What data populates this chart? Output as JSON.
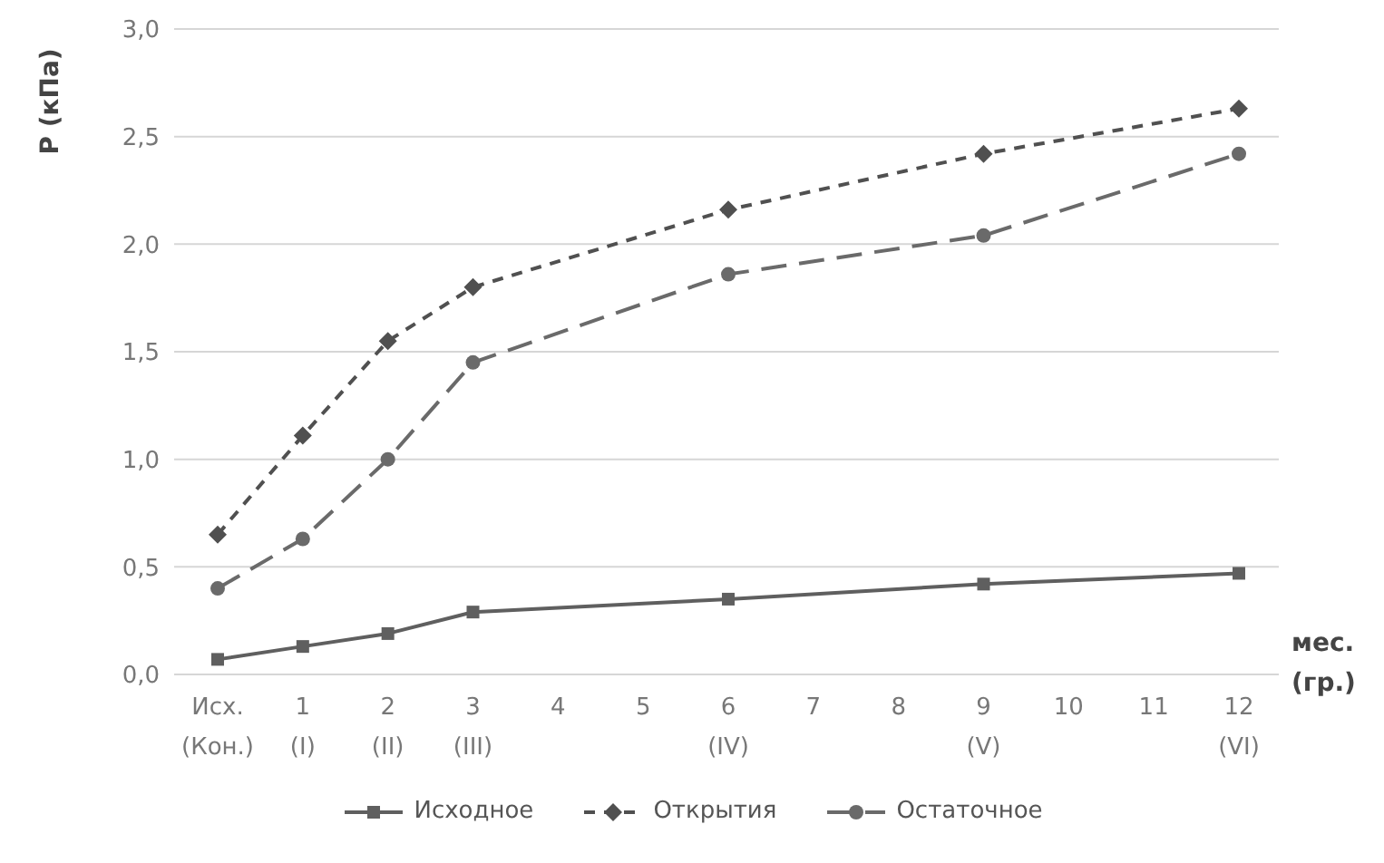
{
  "chart_data": {
    "type": "line",
    "ylabel": "P (кПа)",
    "xlabel": "мес. (гр.)",
    "categories": [
      "Исх. (Кон.)",
      "1 (I)",
      "2 (II)",
      "3 (III)",
      "4",
      "5",
      "6 (IV)",
      "7",
      "8",
      "9 (V)",
      "10",
      "11",
      "12 (VI)"
    ],
    "series": [
      {
        "name": "Исходное",
        "color": "#5f5f5f",
        "marker": "square",
        "line_style": "solid",
        "values": [
          0.07,
          0.13,
          0.19,
          0.29,
          null,
          null,
          0.35,
          null,
          null,
          0.42,
          null,
          null,
          0.47
        ]
      },
      {
        "name": "Открытия",
        "color": "#505050",
        "marker": "diamond",
        "line_style": "dotted",
        "values": [
          0.65,
          1.11,
          1.55,
          1.8,
          null,
          null,
          2.16,
          null,
          null,
          2.42,
          null,
          null,
          2.63
        ]
      },
      {
        "name": "Остаточное",
        "color": "#6a6a6a",
        "marker": "circle",
        "line_style": "dashed",
        "values": [
          0.4,
          0.63,
          1.0,
          1.45,
          null,
          null,
          1.86,
          null,
          null,
          2.04,
          null,
          null,
          2.42
        ]
      }
    ],
    "ylim": [
      0,
      3
    ],
    "yticks": [
      {
        "value": 0,
        "label": "0,0"
      },
      {
        "value": 0.5,
        "label": "0,5"
      },
      {
        "value": 1,
        "label": "1,0"
      },
      {
        "value": 1.5,
        "label": "1,5"
      },
      {
        "value": 2,
        "label": "2,0"
      },
      {
        "value": 2.5,
        "label": "2,5"
      },
      {
        "value": 3,
        "label": "3,0"
      }
    ],
    "grid": "y",
    "legend": "bottom"
  }
}
